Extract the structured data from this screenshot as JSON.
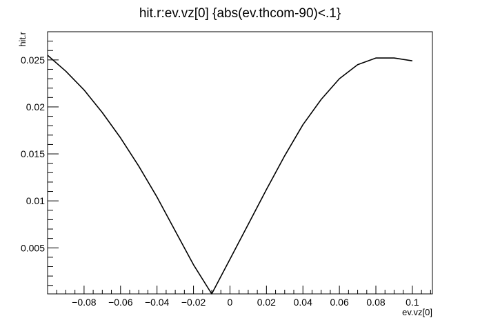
{
  "chart_data": {
    "type": "scatter",
    "title": "hit.r:ev.vz[0] {abs(ev.thcom-90)<.1}",
    "xlabel": "ev.vz[0]",
    "ylabel": "hit.r",
    "xlim": [
      -0.1,
      0.111
    ],
    "ylim": [
      0.0001,
      0.028
    ],
    "x_ticks": [
      -0.08,
      -0.06,
      -0.04,
      -0.02,
      0,
      0.02,
      0.04,
      0.06,
      0.08,
      0.1
    ],
    "x_tick_labels": [
      "−0.08",
      "−0.06",
      "−0.04",
      "−0.02",
      "0",
      "0.02",
      "0.04",
      "0.06",
      "0.08",
      "0.1"
    ],
    "y_ticks": [
      0.005,
      0.01,
      0.015,
      0.02,
      0.025
    ],
    "y_tick_labels": [
      "0.005",
      "0.01",
      "0.015",
      "0.02",
      "0.025"
    ],
    "grid": false,
    "legend": "none",
    "series_color": "#000000",
    "x": [
      -0.1,
      -0.09,
      -0.08,
      -0.07,
      -0.06,
      -0.05,
      -0.04,
      -0.03,
      -0.02,
      -0.01,
      0,
      0.01,
      0.02,
      0.03,
      0.04,
      0.05,
      0.06,
      0.07,
      0.08,
      0.09,
      0.1
    ],
    "y": [
      0.0255,
      0.0238,
      0.0218,
      0.0194,
      0.0167,
      0.0137,
      0.0104,
      0.0068,
      0.0032,
      0.0001,
      0.0038,
      0.0075,
      0.0112,
      0.0148,
      0.0181,
      0.0208,
      0.023,
      0.0245,
      0.0252,
      0.0252,
      0.0249
    ]
  }
}
